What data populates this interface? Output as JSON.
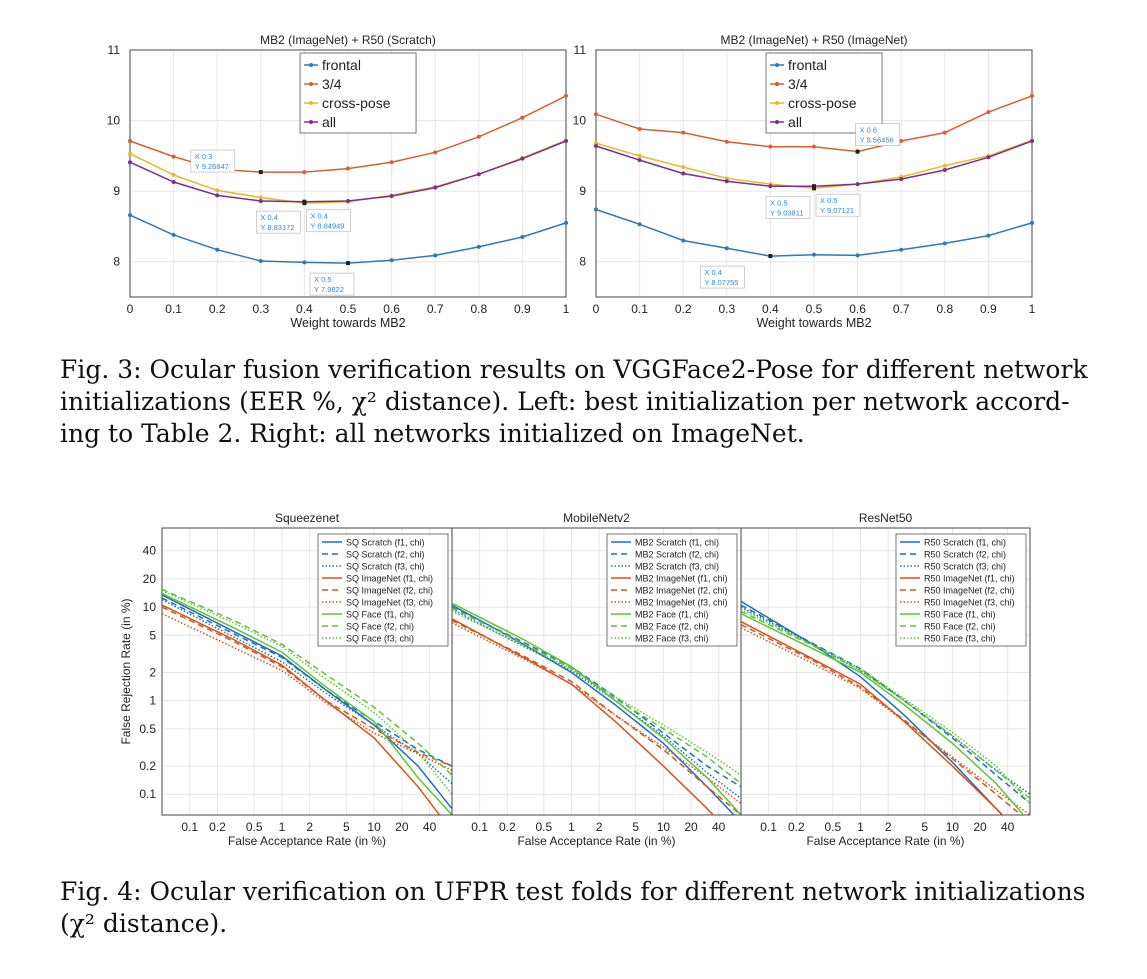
{
  "figure3": {
    "charts": [
      {
        "title": "MB2 (ImageNet) + R50 (Scratch)",
        "xlabel": "Weight towards MB2",
        "x_ticks": [
          "0",
          "0.1",
          "0.2",
          "0.3",
          "0.4",
          "0.5",
          "0.6",
          "0.7",
          "0.8",
          "0.9",
          "1"
        ],
        "y_ticks": [
          "8",
          "9",
          "10",
          "11"
        ],
        "annotations": [
          {
            "x_text": "X 0.3",
            "y_text": "Y 9.26847",
            "series": "3/4",
            "xi": 3
          },
          {
            "x_text": "X 0.4",
            "y_text": "Y 8.83172",
            "series": "cross-pose",
            "xi": 4
          },
          {
            "x_text": "X 0.4",
            "y_text": "Y 8.84949",
            "series": "all",
            "xi": 4
          },
          {
            "x_text": "X 0.5",
            "y_text": "Y 7.9822",
            "series": "frontal",
            "xi": 5
          }
        ]
      },
      {
        "title": "MB2 (ImageNet) + R50 (ImageNet)",
        "xlabel": "Weight towards MB2",
        "x_ticks": [
          "0",
          "0.1",
          "0.2",
          "0.3",
          "0.4",
          "0.5",
          "0.6",
          "0.7",
          "0.8",
          "0.9",
          "1"
        ],
        "y_ticks": [
          "8",
          "9",
          "10",
          "11"
        ],
        "annotations": [
          {
            "x_text": "X 0.6",
            "y_text": "Y 9.56456",
            "series": "3/4",
            "xi": 6
          },
          {
            "x_text": "X 0.5",
            "y_text": "Y 9.03811",
            "series": "cross-pose",
            "xi": 5
          },
          {
            "x_text": "X 0.5",
            "y_text": "Y 9.07121",
            "series": "all",
            "xi": 5
          },
          {
            "x_text": "X 0.4",
            "y_text": "Y 8.07755",
            "series": "frontal",
            "xi": 4
          }
        ]
      }
    ],
    "caption_lines": [
      "Fig. 3: Ocular fusion verification results on VGGFace2-Pose for different network",
      "initializations (EER %, χ² distance). Left: best initialization per network accord-",
      "ing to Table 2. Right: all networks initialized on ImageNet."
    ]
  },
  "figure4": {
    "ylabel": "False Rejection Rate (in %)",
    "xlabel": "False Acceptance Rate (in %)",
    "y_ticks": [
      "0.1",
      "0.2",
      "0.5",
      "1",
      "2",
      "5",
      "10",
      "20",
      "40"
    ],
    "x_ticks": [
      "0.1",
      "0.2",
      "0.5",
      "1",
      "2",
      "5",
      "10",
      "20",
      "40"
    ],
    "panels": [
      {
        "title": "Squeezenet",
        "legend": [
          "SQ Scratch (f1, chi)",
          "SQ Scratch (f2, chi)",
          "SQ Scratch (f3, chi)",
          "SQ ImageNet (f1, chi)",
          "SQ ImageNet (f2, chi)",
          "SQ ImageNet (f3, chi)",
          "SQ Face (f1, chi)",
          "SQ Face (f2, chi)",
          "SQ Face (f3, chi)"
        ]
      },
      {
        "title": "MobileNetv2",
        "legend": [
          "MB2 Scratch (f1, chi)",
          "MB2 Scratch (f2, chi)",
          "MB2 Scratch (f3, chi)",
          "MB2 ImageNet (f1, chi)",
          "MB2 ImageNet (f2, chi)",
          "MB2 ImageNet (f3, chi)",
          "MB2 Face (f1, chi)",
          "MB2 Face (f2, chi)",
          "MB2 Face (f3, chi)"
        ]
      },
      {
        "title": "ResNet50",
        "legend": [
          "R50 Scratch (f1, chi)",
          "R50 Scratch (f2, chi)",
          "R50 Scratch (f3, chi)",
          "R50 ImageNet (f1, chi)",
          "R50 ImageNet (f2, chi)",
          "R50 ImageNet (f3, chi)",
          "R50 Face (f1, chi)",
          "R50 Face (f2, chi)",
          "R50 Face (f3, chi)"
        ]
      }
    ],
    "caption_lines": [
      "Fig. 4: Ocular verification on UFPR test folds for different network initializations",
      "(χ² distance)."
    ]
  },
  "colors": {
    "frontal": "#2b7bb9",
    "three_quarter": "#d95f2b",
    "cross_pose": "#eeb42c",
    "all": "#7e2f8e",
    "scratch": "#1f6fbf",
    "imagenet": "#d95319",
    "face": "#5cc631",
    "annotation_text": "#2b8ad6",
    "grid": "#e6e6e6"
  },
  "chart_data": [
    {
      "type": "line",
      "title": "MB2 (ImageNet) + R50 (Scratch)",
      "xlabel": "Weight towards MB2",
      "ylabel": "",
      "x": [
        0,
        0.1,
        0.2,
        0.3,
        0.4,
        0.5,
        0.6,
        0.7,
        0.8,
        0.9,
        1
      ],
      "ylim": [
        7.5,
        11
      ],
      "xlim": [
        0,
        1
      ],
      "grid": true,
      "legend_position": "top-center",
      "series": [
        {
          "name": "frontal",
          "values": [
            8.66,
            8.38,
            8.17,
            8.01,
            7.99,
            7.98,
            8.02,
            8.09,
            8.21,
            8.35,
            8.55
          ]
        },
        {
          "name": "3/4",
          "values": [
            9.71,
            9.49,
            9.31,
            9.27,
            9.27,
            9.32,
            9.41,
            9.55,
            9.77,
            10.04,
            10.35
          ]
        },
        {
          "name": "cross-pose",
          "values": [
            9.53,
            9.23,
            9.01,
            8.91,
            8.83,
            8.85,
            8.94,
            9.06,
            9.24,
            9.47,
            9.72
          ]
        },
        {
          "name": "all",
          "values": [
            9.41,
            9.13,
            8.94,
            8.86,
            8.85,
            8.86,
            8.93,
            9.05,
            9.24,
            9.46,
            9.71
          ]
        }
      ]
    },
    {
      "type": "line",
      "title": "MB2 (ImageNet) + R50 (ImageNet)",
      "xlabel": "Weight towards MB2",
      "ylabel": "",
      "x": [
        0,
        0.1,
        0.2,
        0.3,
        0.4,
        0.5,
        0.6,
        0.7,
        0.8,
        0.9,
        1
      ],
      "ylim": [
        7.5,
        11
      ],
      "xlim": [
        0,
        1
      ],
      "grid": true,
      "legend_position": "top-center",
      "series": [
        {
          "name": "frontal",
          "values": [
            8.74,
            8.53,
            8.3,
            8.19,
            8.08,
            8.1,
            8.09,
            8.17,
            8.26,
            8.37,
            8.55
          ]
        },
        {
          "name": "3/4",
          "values": [
            10.09,
            9.88,
            9.83,
            9.7,
            9.63,
            9.63,
            9.56,
            9.71,
            9.83,
            10.12,
            10.35
          ]
        },
        {
          "name": "cross-pose",
          "values": [
            9.68,
            9.5,
            9.34,
            9.18,
            9.1,
            9.04,
            9.1,
            9.2,
            9.36,
            9.5,
            9.72
          ]
        },
        {
          "name": "all",
          "values": [
            9.64,
            9.44,
            9.25,
            9.14,
            9.07,
            9.07,
            9.1,
            9.17,
            9.3,
            9.48,
            9.71
          ]
        }
      ]
    },
    {
      "type": "line",
      "title": "Squeezenet",
      "xlabel": "False Acceptance Rate (in %)",
      "ylabel": "False Rejection Rate (in %)",
      "xscale": "log",
      "yscale": "log",
      "xlim": [
        0.05,
        70
      ],
      "ylim": [
        0.06,
        70
      ],
      "grid": true,
      "legend_position": "top-right",
      "series": [
        {
          "name": "SQ Scratch (f1, chi)",
          "x": [
            0.05,
            0.3,
            1,
            3,
            10,
            30,
            70
          ],
          "values": [
            13.5,
            5.5,
            3.0,
            1.3,
            0.55,
            0.2,
            0.07
          ]
        },
        {
          "name": "SQ Scratch (f2, chi)",
          "x": [
            0.05,
            0.3,
            1,
            3,
            10,
            30,
            70
          ],
          "values": [
            12.5,
            5.2,
            2.9,
            1.3,
            0.6,
            0.3,
            0.2
          ]
        },
        {
          "name": "SQ Scratch (f3, chi)",
          "x": [
            0.05,
            0.3,
            1,
            3,
            10,
            30,
            70
          ],
          "values": [
            12.0,
            4.8,
            2.6,
            1.2,
            0.55,
            0.27,
            0.13
          ]
        },
        {
          "name": "SQ ImageNet (f1, chi)",
          "x": [
            0.05,
            0.3,
            1,
            3,
            10,
            30,
            70
          ],
          "values": [
            10.5,
            4.5,
            2.4,
            1.0,
            0.4,
            0.12,
            0.04
          ]
        },
        {
          "name": "SQ ImageNet (f2, chi)",
          "x": [
            0.05,
            0.3,
            1,
            3,
            10,
            30,
            70
          ],
          "values": [
            10.0,
            4.3,
            2.3,
            1.0,
            0.5,
            0.28,
            0.2
          ]
        },
        {
          "name": "SQ ImageNet (f3, chi)",
          "x": [
            0.05,
            0.3,
            1,
            3,
            10,
            30,
            70
          ],
          "values": [
            8.5,
            3.7,
            2.1,
            0.95,
            0.45,
            0.27,
            0.18
          ]
        },
        {
          "name": "SQ Face (f1, chi)",
          "x": [
            0.05,
            0.3,
            1,
            3,
            10,
            30,
            70
          ],
          "values": [
            14.0,
            6.0,
            3.3,
            1.4,
            0.6,
            0.15,
            0.06
          ]
        },
        {
          "name": "SQ Face (f2, chi)",
          "x": [
            0.05,
            0.3,
            1,
            3,
            10,
            30,
            70
          ],
          "values": [
            15.5,
            7.2,
            4.0,
            1.9,
            0.85,
            0.35,
            0.16
          ]
        },
        {
          "name": "SQ Face (f3, chi)",
          "x": [
            0.05,
            0.3,
            1,
            3,
            10,
            30,
            70
          ],
          "values": [
            15.0,
            6.8,
            3.8,
            1.7,
            0.75,
            0.28,
            0.1
          ]
        }
      ]
    },
    {
      "type": "line",
      "title": "MobileNetv2",
      "xlabel": "False Acceptance Rate (in %)",
      "ylabel": "",
      "xscale": "log",
      "yscale": "log",
      "xlim": [
        0.05,
        70
      ],
      "ylim": [
        0.06,
        70
      ],
      "grid": true,
      "legend_position": "top-right",
      "series": [
        {
          "name": "MB2 Scratch (f1, chi)",
          "x": [
            0.05,
            0.3,
            1,
            3,
            10,
            30,
            70
          ],
          "values": [
            10.5,
            4.0,
            2.0,
            0.9,
            0.35,
            0.12,
            0.05
          ]
        },
        {
          "name": "MB2 Scratch (f2, chi)",
          "x": [
            0.05,
            0.3,
            1,
            3,
            10,
            30,
            70
          ],
          "values": [
            10.0,
            4.2,
            2.3,
            1.1,
            0.45,
            0.2,
            0.12
          ]
        },
        {
          "name": "MB2 Scratch (f3, chi)",
          "x": [
            0.05,
            0.3,
            1,
            3,
            10,
            30,
            70
          ],
          "values": [
            9.5,
            3.8,
            2.1,
            1.0,
            0.42,
            0.17,
            0.09
          ]
        },
        {
          "name": "MB2 ImageNet (f1, chi)",
          "x": [
            0.05,
            0.3,
            1,
            3,
            10,
            30,
            70
          ],
          "values": [
            7.5,
            2.9,
            1.5,
            0.6,
            0.2,
            0.07,
            0.03
          ]
        },
        {
          "name": "MB2 ImageNet (f2, chi)",
          "x": [
            0.05,
            0.3,
            1,
            3,
            10,
            30,
            70
          ],
          "values": [
            7.2,
            3.0,
            1.6,
            0.7,
            0.3,
            0.12,
            0.06
          ]
        },
        {
          "name": "MB2 ImageNet (f3, chi)",
          "x": [
            0.05,
            0.3,
            1,
            3,
            10,
            30,
            70
          ],
          "values": [
            6.8,
            2.8,
            1.5,
            0.7,
            0.32,
            0.15,
            0.08
          ]
        },
        {
          "name": "MB2 Face (f1, chi)",
          "x": [
            0.05,
            0.3,
            1,
            3,
            10,
            30,
            70
          ],
          "values": [
            11.0,
            4.5,
            2.3,
            1.0,
            0.4,
            0.15,
            0.06
          ]
        },
        {
          "name": "MB2 Face (f2, chi)",
          "x": [
            0.05,
            0.3,
            1,
            3,
            10,
            30,
            70
          ],
          "values": [
            9.8,
            4.1,
            2.2,
            1.05,
            0.5,
            0.25,
            0.13
          ]
        },
        {
          "name": "MB2 Face (f3, chi)",
          "x": [
            0.05,
            0.3,
            1,
            3,
            10,
            30,
            70
          ],
          "values": [
            9.0,
            3.9,
            2.2,
            1.1,
            0.55,
            0.28,
            0.16
          ]
        }
      ]
    },
    {
      "type": "line",
      "title": "ResNet50",
      "xlabel": "False Acceptance Rate (in %)",
      "ylabel": "",
      "xscale": "log",
      "yscale": "log",
      "xlim": [
        0.05,
        70
      ],
      "ylim": [
        0.06,
        70
      ],
      "grid": true,
      "legend_position": "top-right",
      "series": [
        {
          "name": "R50 Scratch (f1, chi)",
          "x": [
            0.05,
            0.3,
            1,
            3,
            10,
            30,
            70
          ],
          "values": [
            11.5,
            4.0,
            1.8,
            0.7,
            0.22,
            0.07,
            0.03
          ]
        },
        {
          "name": "R50 Scratch (f2, chi)",
          "x": [
            0.05,
            0.3,
            1,
            3,
            10,
            30,
            70
          ],
          "values": [
            10.5,
            4.1,
            2.2,
            1.0,
            0.4,
            0.16,
            0.08
          ]
        },
        {
          "name": "R50 Scratch (f3, chi)",
          "x": [
            0.05,
            0.3,
            1,
            3,
            10,
            30,
            70
          ],
          "values": [
            10.0,
            4.0,
            2.1,
            1.0,
            0.42,
            0.18,
            0.1
          ]
        },
        {
          "name": "R50 ImageNet (f1, chi)",
          "x": [
            0.05,
            0.3,
            1,
            3,
            10,
            30,
            70
          ],
          "values": [
            7.0,
            2.8,
            1.5,
            0.6,
            0.2,
            0.07,
            0.03
          ]
        },
        {
          "name": "R50 ImageNet (f2, chi)",
          "x": [
            0.05,
            0.3,
            1,
            3,
            10,
            30,
            70
          ],
          "values": [
            6.5,
            2.7,
            1.4,
            0.62,
            0.24,
            0.1,
            0.05
          ]
        },
        {
          "name": "R50 ImageNet (f3, chi)",
          "x": [
            0.05,
            0.3,
            1,
            3,
            10,
            30,
            70
          ],
          "values": [
            6.0,
            2.5,
            1.35,
            0.6,
            0.25,
            0.11,
            0.06
          ]
        },
        {
          "name": "R50 Face (f1, chi)",
          "x": [
            0.05,
            0.3,
            1,
            3,
            10,
            30,
            70
          ],
          "values": [
            8.5,
            3.6,
            2.0,
            0.9,
            0.35,
            0.13,
            0.05
          ]
        },
        {
          "name": "R50 Face (f2, chi)",
          "x": [
            0.05,
            0.3,
            1,
            3,
            10,
            30,
            70
          ],
          "values": [
            9.0,
            3.9,
            2.1,
            1.0,
            0.42,
            0.18,
            0.09
          ]
        },
        {
          "name": "R50 Face (f3, chi)",
          "x": [
            0.05,
            0.3,
            1,
            3,
            10,
            30,
            70
          ],
          "values": [
            9.5,
            4.0,
            2.2,
            1.05,
            0.46,
            0.2,
            0.08
          ]
        }
      ]
    }
  ]
}
